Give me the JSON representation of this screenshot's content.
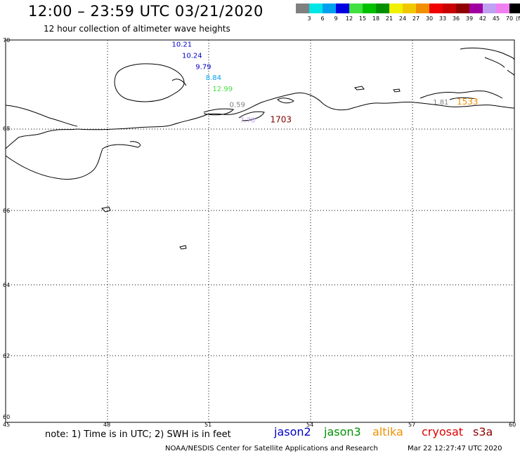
{
  "header": {
    "title": "12:00 – 23:59 UTC 03/21/2020",
    "subtitle": "12 hour collection of altimeter wave heights"
  },
  "color_scale": {
    "unit": "(ft)",
    "bins": [
      {
        "label": "3",
        "color": "#808080"
      },
      {
        "label": "6",
        "color": "#00e5e5"
      },
      {
        "label": "9",
        "color": "#00a0f0"
      },
      {
        "label": "12",
        "color": "#0000e0"
      },
      {
        "label": "15",
        "color": "#40e040"
      },
      {
        "label": "18",
        "color": "#00c000"
      },
      {
        "label": "21",
        "color": "#009000"
      },
      {
        "label": "24",
        "color": "#f0f000"
      },
      {
        "label": "27",
        "color": "#f0c800"
      },
      {
        "label": "30",
        "color": "#f09000"
      },
      {
        "label": "33",
        "color": "#f00000"
      },
      {
        "label": "36",
        "color": "#c80000"
      },
      {
        "label": "39",
        "color": "#900000"
      },
      {
        "label": "42",
        "color": "#a000a0"
      },
      {
        "label": "45",
        "color": "#c0a0f0"
      },
      {
        "label": "70",
        "color": "#f080f0"
      },
      {
        "label": "",
        "color": "#000000"
      }
    ]
  },
  "axes": {
    "lat_labels": [
      "70",
      "68",
      "66",
      "64",
      "62",
      "60"
    ],
    "lon_labels": [
      "45",
      "48",
      "51",
      "54",
      "57",
      "60"
    ]
  },
  "observations": [
    {
      "text": "10.21",
      "lon": 49.9,
      "lat": 69.85,
      "color": "#0000c8"
    },
    {
      "text": "10.24",
      "lon": 50.2,
      "lat": 69.6,
      "color": "#0000c8"
    },
    {
      "text": "9.79",
      "lon": 50.6,
      "lat": 69.35,
      "color": "#0000c8"
    },
    {
      "text": "8.84",
      "lon": 50.9,
      "lat": 69.1,
      "color": "#00a0f0"
    },
    {
      "text": "12.99",
      "lon": 51.1,
      "lat": 68.85,
      "color": "#40e040"
    },
    {
      "text": "0.59",
      "lon": 51.6,
      "lat": 68.5,
      "color": "#808080"
    },
    {
      "text": "7.78",
      "lon": 51.9,
      "lat": 68.15,
      "color": "#c0a0f0"
    },
    {
      "text": "1703",
      "lon": 52.8,
      "lat": 68.15,
      "color": "#800000"
    },
    {
      "text": "1.81",
      "lon": 57.6,
      "lat": 68.55,
      "color": "#808080"
    },
    {
      "text": "1533",
      "lon": 58.3,
      "lat": 68.55,
      "color": "#f09000"
    }
  ],
  "footer": {
    "note": "note: 1) Time is in UTC; 2) SWH is in feet",
    "satellites": [
      {
        "name": "jason2",
        "color": "#0000c8"
      },
      {
        "name": "jason3",
        "color": "#009000"
      },
      {
        "name": "altika",
        "color": "#f09000"
      },
      {
        "name": "cryosat",
        "color": "#e00000"
      },
      {
        "name": "s3a",
        "color": "#900000"
      }
    ],
    "credit": "NOAA/NESDIS Center for Satellite Applications and Research",
    "timestamp": "Mar 22 12:27:47 UTC 2020"
  }
}
